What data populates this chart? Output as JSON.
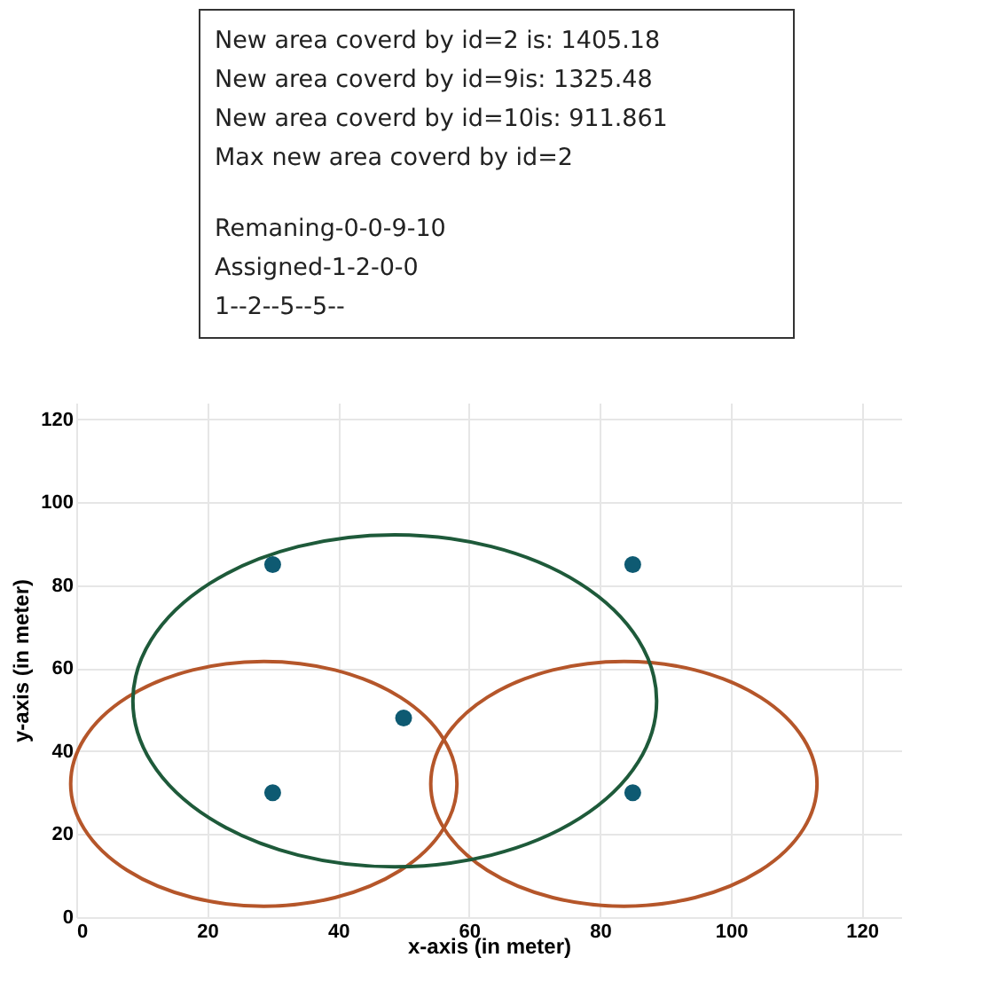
{
  "chart_data": {
    "type": "scatter",
    "xlabel": "x-axis (in meter)",
    "ylabel": "y-axis (in meter)",
    "annotations": [
      "New area coverd by id=2 is: 1405.18",
      "New area coverd by id=9is: 1325.48",
      "New area coverd by id=10is: 911.861",
      "Max new area coverd by id=2",
      "Remaning-0-0-9-10",
      "Assigned-1-2-0-0",
      "1--2--5--5--"
    ],
    "xlim": [
      0,
      126
    ],
    "ylim": [
      0,
      124
    ],
    "xticks": [
      0,
      20,
      40,
      60,
      80,
      100,
      120
    ],
    "yticks": [
      0,
      20,
      40,
      60,
      80,
      100,
      120
    ],
    "grid": true,
    "marker": "circle",
    "series": [
      {
        "color": "#0e5a72",
        "x": [
          30,
          85,
          50,
          30,
          85
        ],
        "values": [
          85,
          85,
          48,
          30,
          30
        ]
      }
    ]
  }
}
